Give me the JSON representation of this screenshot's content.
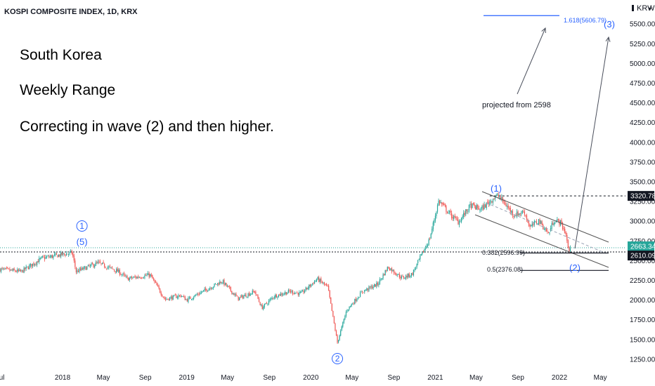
{
  "header": {
    "symbol_title": "KOSPI COMPOSITE INDEX, 1D, KRX",
    "currency": "KRW"
  },
  "notes": [
    "South Korea",
    "Weekly Range",
    "Correcting in wave (2) and then higher."
  ],
  "annotations": {
    "projection_text": "projected from 2598",
    "wave_1_circled": "1",
    "wave_5": "(5)",
    "wave_2_circled": "2",
    "wave_1_paren": "(1)",
    "wave_2_paren": "(2)",
    "wave_3_paren": "(3)",
    "fib_1618": "1.618(5606.79)",
    "fib_0382": "0.382(2596.99)",
    "fib_05": "0.5(2376.08)"
  },
  "price_labels": {
    "high_level": "3320.78",
    "current_price": "2663.34",
    "low_level": "2610.09"
  },
  "colors": {
    "up": "#26a69a",
    "down": "#ef5350",
    "wave_blue": "#2962ff",
    "current_price_bg": "#26a69a",
    "level_bg": "#131722"
  },
  "chart_data": {
    "type": "candlestick",
    "title": "KOSPI COMPOSITE INDEX, 1D, KRX",
    "y_axis": {
      "ticks": [
        1250,
        1500,
        1750,
        2000,
        2250,
        2500,
        2750,
        3000,
        3250,
        3500,
        3750,
        4000,
        4250,
        4500,
        4750,
        5000,
        5250,
        5500
      ],
      "tick_labels": [
        "1250.00",
        "1500.00",
        "1750.00",
        "2000.00",
        "2250.00",
        "2500.00",
        "2750.00",
        "3000.00",
        "3250.00",
        "3500.00",
        "3750.00",
        "4000.00",
        "4250.00",
        "4500.00",
        "4750.00",
        "5000.00",
        "5250.00",
        "5500.00"
      ],
      "range": [
        1160,
        5760
      ],
      "position": "right"
    },
    "x_axis": {
      "range": [
        "2017-07-01",
        "2022-07-10"
      ],
      "ticks": [
        "2017-07-01",
        "2018-01-01",
        "2018-05-01",
        "2018-09-01",
        "2019-01-01",
        "2019-05-01",
        "2019-09-01",
        "2020-01-01",
        "2020-05-01",
        "2020-09-01",
        "2021-01-01",
        "2021-05-01",
        "2021-09-01",
        "2022-01-01",
        "2022-05-01"
      ],
      "tick_labels": [
        "Jul",
        "2018",
        "May",
        "Sep",
        "2019",
        "May",
        "Sep",
        "2020",
        "May",
        "Sep",
        "2021",
        "May",
        "Sep",
        "2022",
        "May"
      ]
    },
    "price_path": [
      [
        "2017-07-01",
        2390
      ],
      [
        "2017-09-01",
        2360
      ],
      [
        "2017-11-01",
        2530
      ],
      [
        "2018-01-29",
        2600
      ],
      [
        "2018-02-10",
        2360
      ],
      [
        "2018-04-15",
        2470
      ],
      [
        "2018-06-15",
        2360
      ],
      [
        "2018-07-10",
        2270
      ],
      [
        "2018-09-15",
        2320
      ],
      [
        "2018-10-29",
        2010
      ],
      [
        "2018-12-15",
        2060
      ],
      [
        "2019-01-01",
        2000
      ],
      [
        "2019-04-15",
        2240
      ],
      [
        "2019-06-01",
        2020
      ],
      [
        "2019-07-20",
        2110
      ],
      [
        "2019-08-10",
        1900
      ],
      [
        "2019-09-15",
        2050
      ],
      [
        "2019-11-01",
        2110
      ],
      [
        "2019-12-03",
        2080
      ],
      [
        "2020-01-20",
        2270
      ],
      [
        "2020-02-20",
        2160
      ],
      [
        "2020-03-19",
        1460
      ],
      [
        "2020-04-15",
        1870
      ],
      [
        "2020-06-01",
        2110
      ],
      [
        "2020-07-15",
        2200
      ],
      [
        "2020-08-15",
        2420
      ],
      [
        "2020-09-25",
        2280
      ],
      [
        "2020-10-25",
        2330
      ],
      [
        "2020-11-20",
        2560
      ],
      [
        "2020-12-15",
        2770
      ],
      [
        "2021-01-11",
        3260
      ],
      [
        "2021-02-15",
        3080
      ],
      [
        "2021-03-10",
        2990
      ],
      [
        "2021-04-15",
        3200
      ],
      [
        "2021-05-15",
        3150
      ],
      [
        "2021-06-25",
        3310
      ],
      [
        "2021-07-06",
        3320
      ],
      [
        "2021-08-20",
        3080
      ],
      [
        "2021-09-20",
        3120
      ],
      [
        "2021-10-06",
        2920
      ],
      [
        "2021-11-01",
        3010
      ],
      [
        "2021-11-30",
        2840
      ],
      [
        "2021-12-15",
        3010
      ],
      [
        "2022-01-03",
        2990
      ],
      [
        "2022-01-20",
        2840
      ],
      [
        "2022-01-28",
        2610
      ],
      [
        "2022-02-04",
        2663
      ]
    ],
    "levels": [
      {
        "label": "0.382(2596.99)",
        "value": 2596.99
      },
      {
        "label": "0.5(2376.08)",
        "value": 2376.08
      },
      {
        "label": "1.618(5606.79)",
        "value": 5606.79
      },
      {
        "label": "3320.78",
        "value": 3320.78
      },
      {
        "label": "2610.09",
        "value": 2610.09
      },
      {
        "label": "2663.34",
        "value": 2663.34
      }
    ],
    "wave_labels": [
      {
        "label": "1",
        "date": "2018-01-29",
        "price": 2600
      },
      {
        "label": "(5)",
        "date": "2018-01-29",
        "price": 2600
      },
      {
        "label": "2",
        "date": "2020-03-19",
        "price": 1460
      },
      {
        "label": "(1)",
        "date": "2021-07-06",
        "price": 3320
      },
      {
        "label": "(2)",
        "date": "2022-01-28",
        "price": 2610
      },
      {
        "label": "(3)",
        "date": "2022-04-01",
        "price": 5606
      }
    ],
    "grid": false
  }
}
